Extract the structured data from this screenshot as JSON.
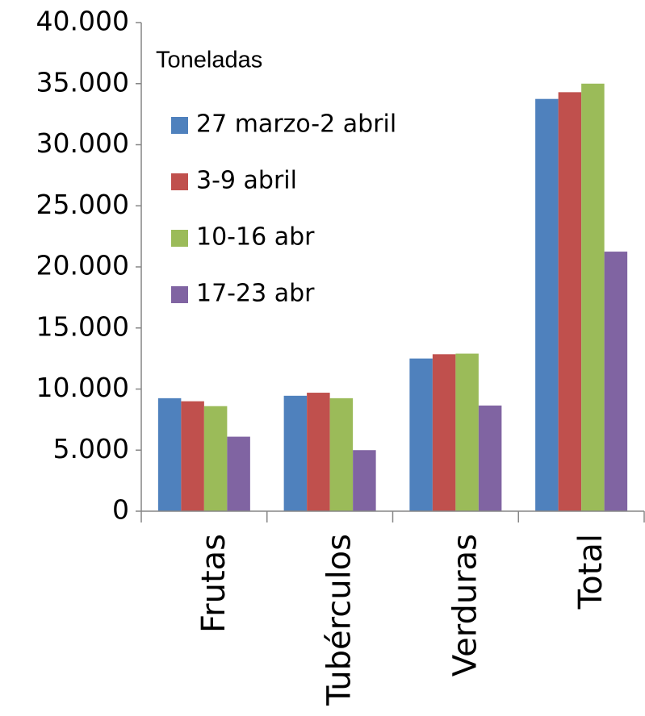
{
  "chart_data": {
    "type": "bar",
    "legend_title": "Toneladas",
    "categories": [
      "Frutas",
      "Tubérculos",
      "Verduras",
      "Total"
    ],
    "series": [
      {
        "name": "27 marzo-2 abril",
        "color": "#4f81bd",
        "values": [
          9250,
          9450,
          12500,
          33750
        ]
      },
      {
        "name": "3-9 abril",
        "color": "#c0504d",
        "values": [
          9000,
          9700,
          12850,
          34300
        ]
      },
      {
        "name": "10-16 abr",
        "color": "#9bbb59",
        "values": [
          8600,
          9250,
          12900,
          35000
        ]
      },
      {
        "name": "17-23 abr",
        "color": "#8064a2",
        "values": [
          6100,
          5000,
          8650,
          21250
        ]
      }
    ],
    "ylim": [
      0,
      40000
    ],
    "yticks": [
      0,
      {
        "value": 5000,
        "label": "5.000"
      },
      {
        "value": 10000,
        "label": "10.000"
      },
      {
        "value": 15000,
        "label": "15.000"
      },
      {
        "value": 20000,
        "label": "20.000"
      },
      {
        "value": 25000,
        "label": "25.000"
      },
      {
        "value": 30000,
        "label": "30.000"
      },
      {
        "value": 35000,
        "label": "35.000"
      },
      {
        "value": 40000,
        "label": "40.000"
      }
    ],
    "grid": false,
    "legend": "upper left"
  }
}
